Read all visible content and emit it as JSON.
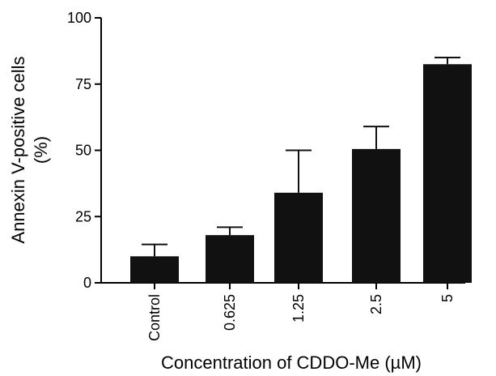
{
  "chart_data": {
    "type": "bar",
    "title": "",
    "xlabel": "Concentration of CDDO-Me (µM)",
    "ylabel": [
      "Annexin V-positive cells",
      "(%)"
    ],
    "categories": [
      "Control",
      "0.625",
      "1.25",
      "2.5",
      "5"
    ],
    "values": [
      10,
      18,
      34,
      50.5,
      82.5
    ],
    "errors": [
      4.5,
      3,
      16,
      8.5,
      2.5
    ],
    "ylim": [
      0,
      100
    ],
    "yticks": [
      "0",
      "25",
      "50",
      "75",
      "100"
    ],
    "bar_color": "#111111",
    "grid": false,
    "legend": "none"
  }
}
